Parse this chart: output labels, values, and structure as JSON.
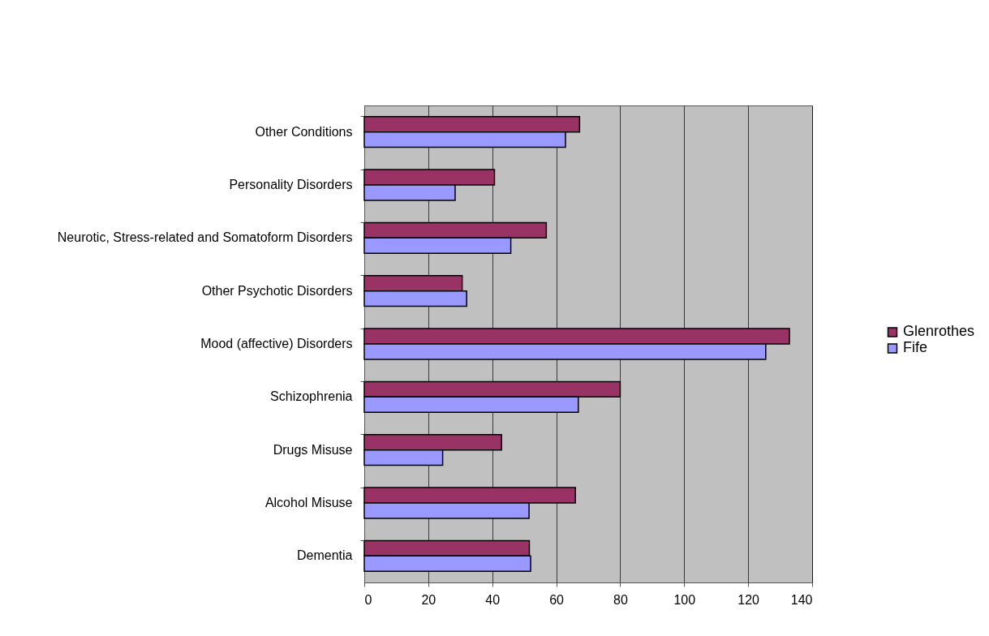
{
  "chart_data": {
    "type": "bar",
    "orientation": "horizontal",
    "categories": [
      "Other Conditions",
      "Personality Disorders",
      "Neurotic, Stress-related and Somatoform Disorders",
      "Other Psychotic Disorders",
      "Mood (affective) Disorders",
      "Schizophrenia",
      "Drugs Misuse",
      "Alcohol Misuse",
      "Dementia"
    ],
    "series": [
      {
        "name": "Glenrothes",
        "color": "#993366",
        "values": [
          67.3,
          40.7,
          56.9,
          30.6,
          132.9,
          80,
          42.9,
          66,
          51.6
        ]
      },
      {
        "name": "Fife",
        "color": "#9999ff",
        "values": [
          62.9,
          28.4,
          45.8,
          32,
          125.5,
          66.9,
          24.5,
          51.5,
          52
        ]
      }
    ],
    "xlim": [
      0,
      140
    ],
    "xticks": [
      0,
      20,
      40,
      60,
      80,
      100,
      120,
      140
    ],
    "grid": "x",
    "legend": "right"
  }
}
